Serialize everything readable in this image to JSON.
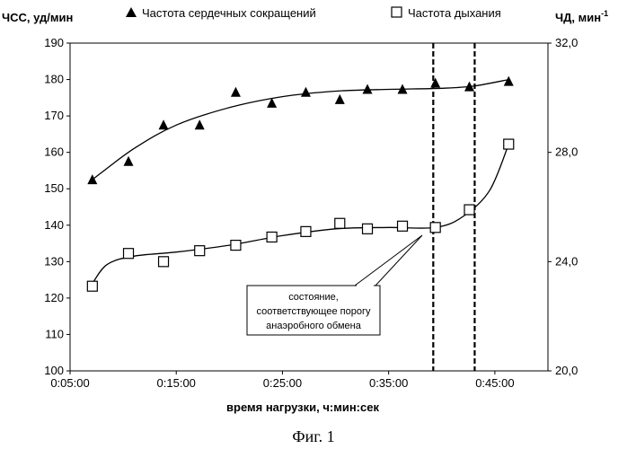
{
  "chart_data": {
    "type": "scatter",
    "ylabel_left": "ЧСС,  уд/мин",
    "ylabel_right": "ЧД, мин",
    "ylabel_right_sup": "-1",
    "xlabel": "время нагрузки, ч:мин:сек",
    "caption": "Фиг. 1",
    "annotation": [
      "состояние,",
      "соответствующее порогу",
      "анаэробного обмена"
    ],
    "x_ticks": [
      "0:05:00",
      "0:15:00",
      "0:25:00",
      "0:35:00",
      "0:45:00"
    ],
    "x_tick_minutes": [
      5,
      15,
      25,
      35,
      45
    ],
    "xlim_minutes": [
      5,
      50
    ],
    "y_left_ticks": [
      "100",
      "110",
      "120",
      "130",
      "140",
      "150",
      "160",
      "170",
      "180",
      "190"
    ],
    "y_left_tick_values": [
      100,
      110,
      120,
      130,
      140,
      150,
      160,
      170,
      180,
      190
    ],
    "ylim_left": [
      100,
      190
    ],
    "y_right_ticks": [
      "20,0",
      "24,0",
      "28,0",
      "32,0"
    ],
    "y_right_tick_values": [
      20,
      24,
      28,
      32
    ],
    "ylim_right": [
      20,
      32
    ],
    "threshold_lines_minutes": [
      39.2,
      43.1
    ],
    "series": [
      {
        "name": "Частота сердечных сокращений",
        "axis": "left",
        "marker": "triangle",
        "x_minutes": [
          7.1,
          10.5,
          13.8,
          17.2,
          20.6,
          24.0,
          27.2,
          30.4,
          33.0,
          36.3,
          39.4,
          42.6,
          46.3
        ],
        "y": [
          152.5,
          157.5,
          167.5,
          167.5,
          176.5,
          173.5,
          176.5,
          174.5,
          177.3,
          177.3,
          179.0,
          178.0,
          179.5
        ]
      },
      {
        "name": "Частота дыхания",
        "axis": "right",
        "marker": "square",
        "x_minutes": [
          7.1,
          10.5,
          13.8,
          17.2,
          20.6,
          24.0,
          27.2,
          30.4,
          33.0,
          36.3,
          39.4,
          42.6,
          46.3
        ],
        "y": [
          23.1,
          24.3,
          24.0,
          24.4,
          24.6,
          24.9,
          25.1,
          25.4,
          25.2,
          25.3,
          25.25,
          25.9,
          28.3
        ]
      }
    ]
  }
}
